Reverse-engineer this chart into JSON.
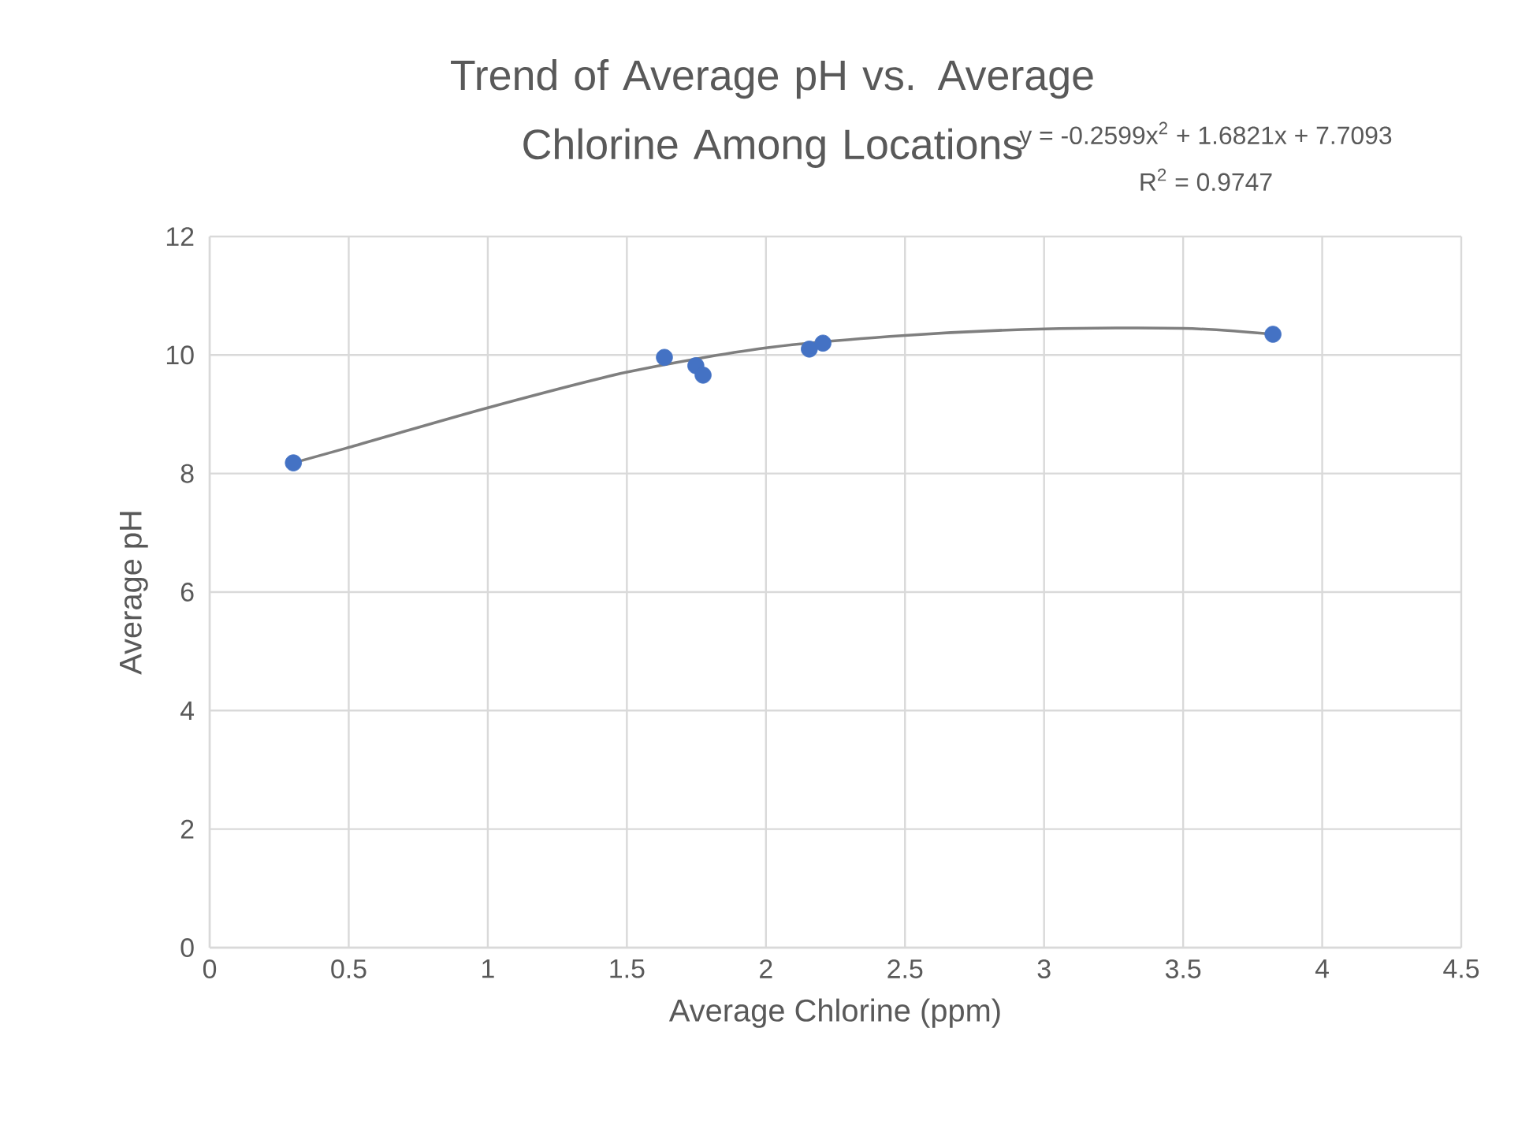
{
  "chart_data": {
    "type": "scatter",
    "title": "Trend of Average pH vs. Average Chlorine Among Locations",
    "xlabel": "Average Chlorine (ppm)",
    "ylabel": "Average pH",
    "annotations": [
      "y = -0.2599x$^{2}$ + 1.6821x + 7.7093",
      "R$^{2}$ = 0.9747"
    ],
    "series": [
      {
        "type": "line",
        "color": "#7f7f7f",
        "marker": "none",
        "line_style": "solid",
        "x": [
          0.301,
          0.5,
          1.0,
          1.5,
          2.0,
          2.5,
          3.0,
          3.5,
          3.823
        ],
        "values": [
          8.18,
          8.44,
          9.11,
          9.71,
          10.12,
          10.33,
          10.44,
          10.45,
          10.35
        ]
      },
      {
        "type": "scatter",
        "color": "#4472c4",
        "marker": "circle",
        "x": [
          0.301,
          1.635,
          1.748,
          1.774,
          2.156,
          2.205,
          3.823
        ],
        "values": [
          8.18,
          9.96,
          9.82,
          9.66,
          10.1,
          10.2,
          10.35
        ]
      }
    ],
    "xlim": [
      0,
      4.5
    ],
    "ylim": [
      0,
      12
    ],
    "xticks": [
      0,
      0.5,
      1,
      1.5,
      2,
      2.5,
      3,
      3.5,
      4,
      4.5
    ],
    "yticks": [
      0,
      2,
      4,
      6,
      8,
      10,
      12
    ],
    "grid": true,
    "legend": false
  }
}
